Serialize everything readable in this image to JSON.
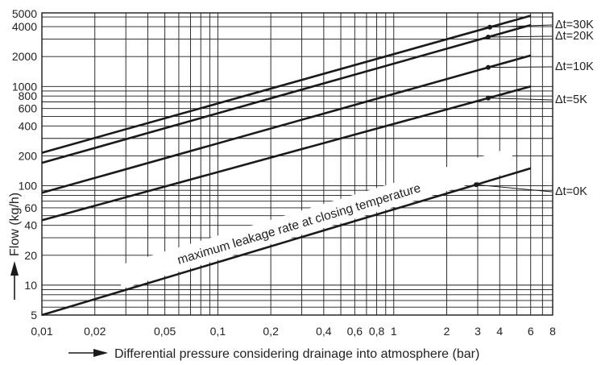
{
  "chart_data": {
    "type": "line",
    "title": "",
    "xlabel": "Differential pressure considering drainage into atmosphere (bar)",
    "ylabel": "Flow (kg/h)",
    "x_scale": "log",
    "y_scale": "log",
    "xlim": [
      0.01,
      8
    ],
    "ylim": [
      5,
      5500
    ],
    "grid": true,
    "x_tick_labels": [
      "0,01",
      "0,02",
      "0,05",
      "0,1",
      "0,2",
      "0,4",
      "0,6",
      "0,8",
      "1",
      "2",
      "3",
      "4",
      "6",
      "8"
    ],
    "x_tick_values": [
      0.01,
      0.02,
      0.05,
      0.1,
      0.2,
      0.4,
      0.6,
      0.8,
      1,
      2,
      3,
      4,
      6,
      8
    ],
    "y_tick_labels": [
      "5",
      "10",
      "20",
      "40",
      "60",
      "100",
      "200",
      "400",
      "600",
      "800",
      "1000",
      "2000",
      "4000",
      "5000"
    ],
    "y_tick_values": [
      5,
      10,
      20,
      40,
      60,
      100,
      200,
      400,
      600,
      800,
      1000,
      2000,
      4000,
      5000
    ],
    "series": [
      {
        "name": "Δt=30K",
        "x": [
          0.01,
          6
        ],
        "y": [
          215,
          5150
        ]
      },
      {
        "name": "Δt=20K",
        "x": [
          0.01,
          6
        ],
        "y": [
          170,
          4150
        ]
      },
      {
        "name": "Δt=10K",
        "x": [
          0.01,
          6
        ],
        "y": [
          85,
          2050
        ]
      },
      {
        "name": "Δt=5K",
        "x": [
          0.01,
          6
        ],
        "y": [
          45,
          1000
        ]
      },
      {
        "name": "Δt=0K",
        "x": [
          0.01,
          6
        ],
        "y": [
          5,
          150
        ]
      }
    ],
    "annotations": [
      {
        "text": "maximum leakage rate at closing temperature"
      }
    ]
  }
}
